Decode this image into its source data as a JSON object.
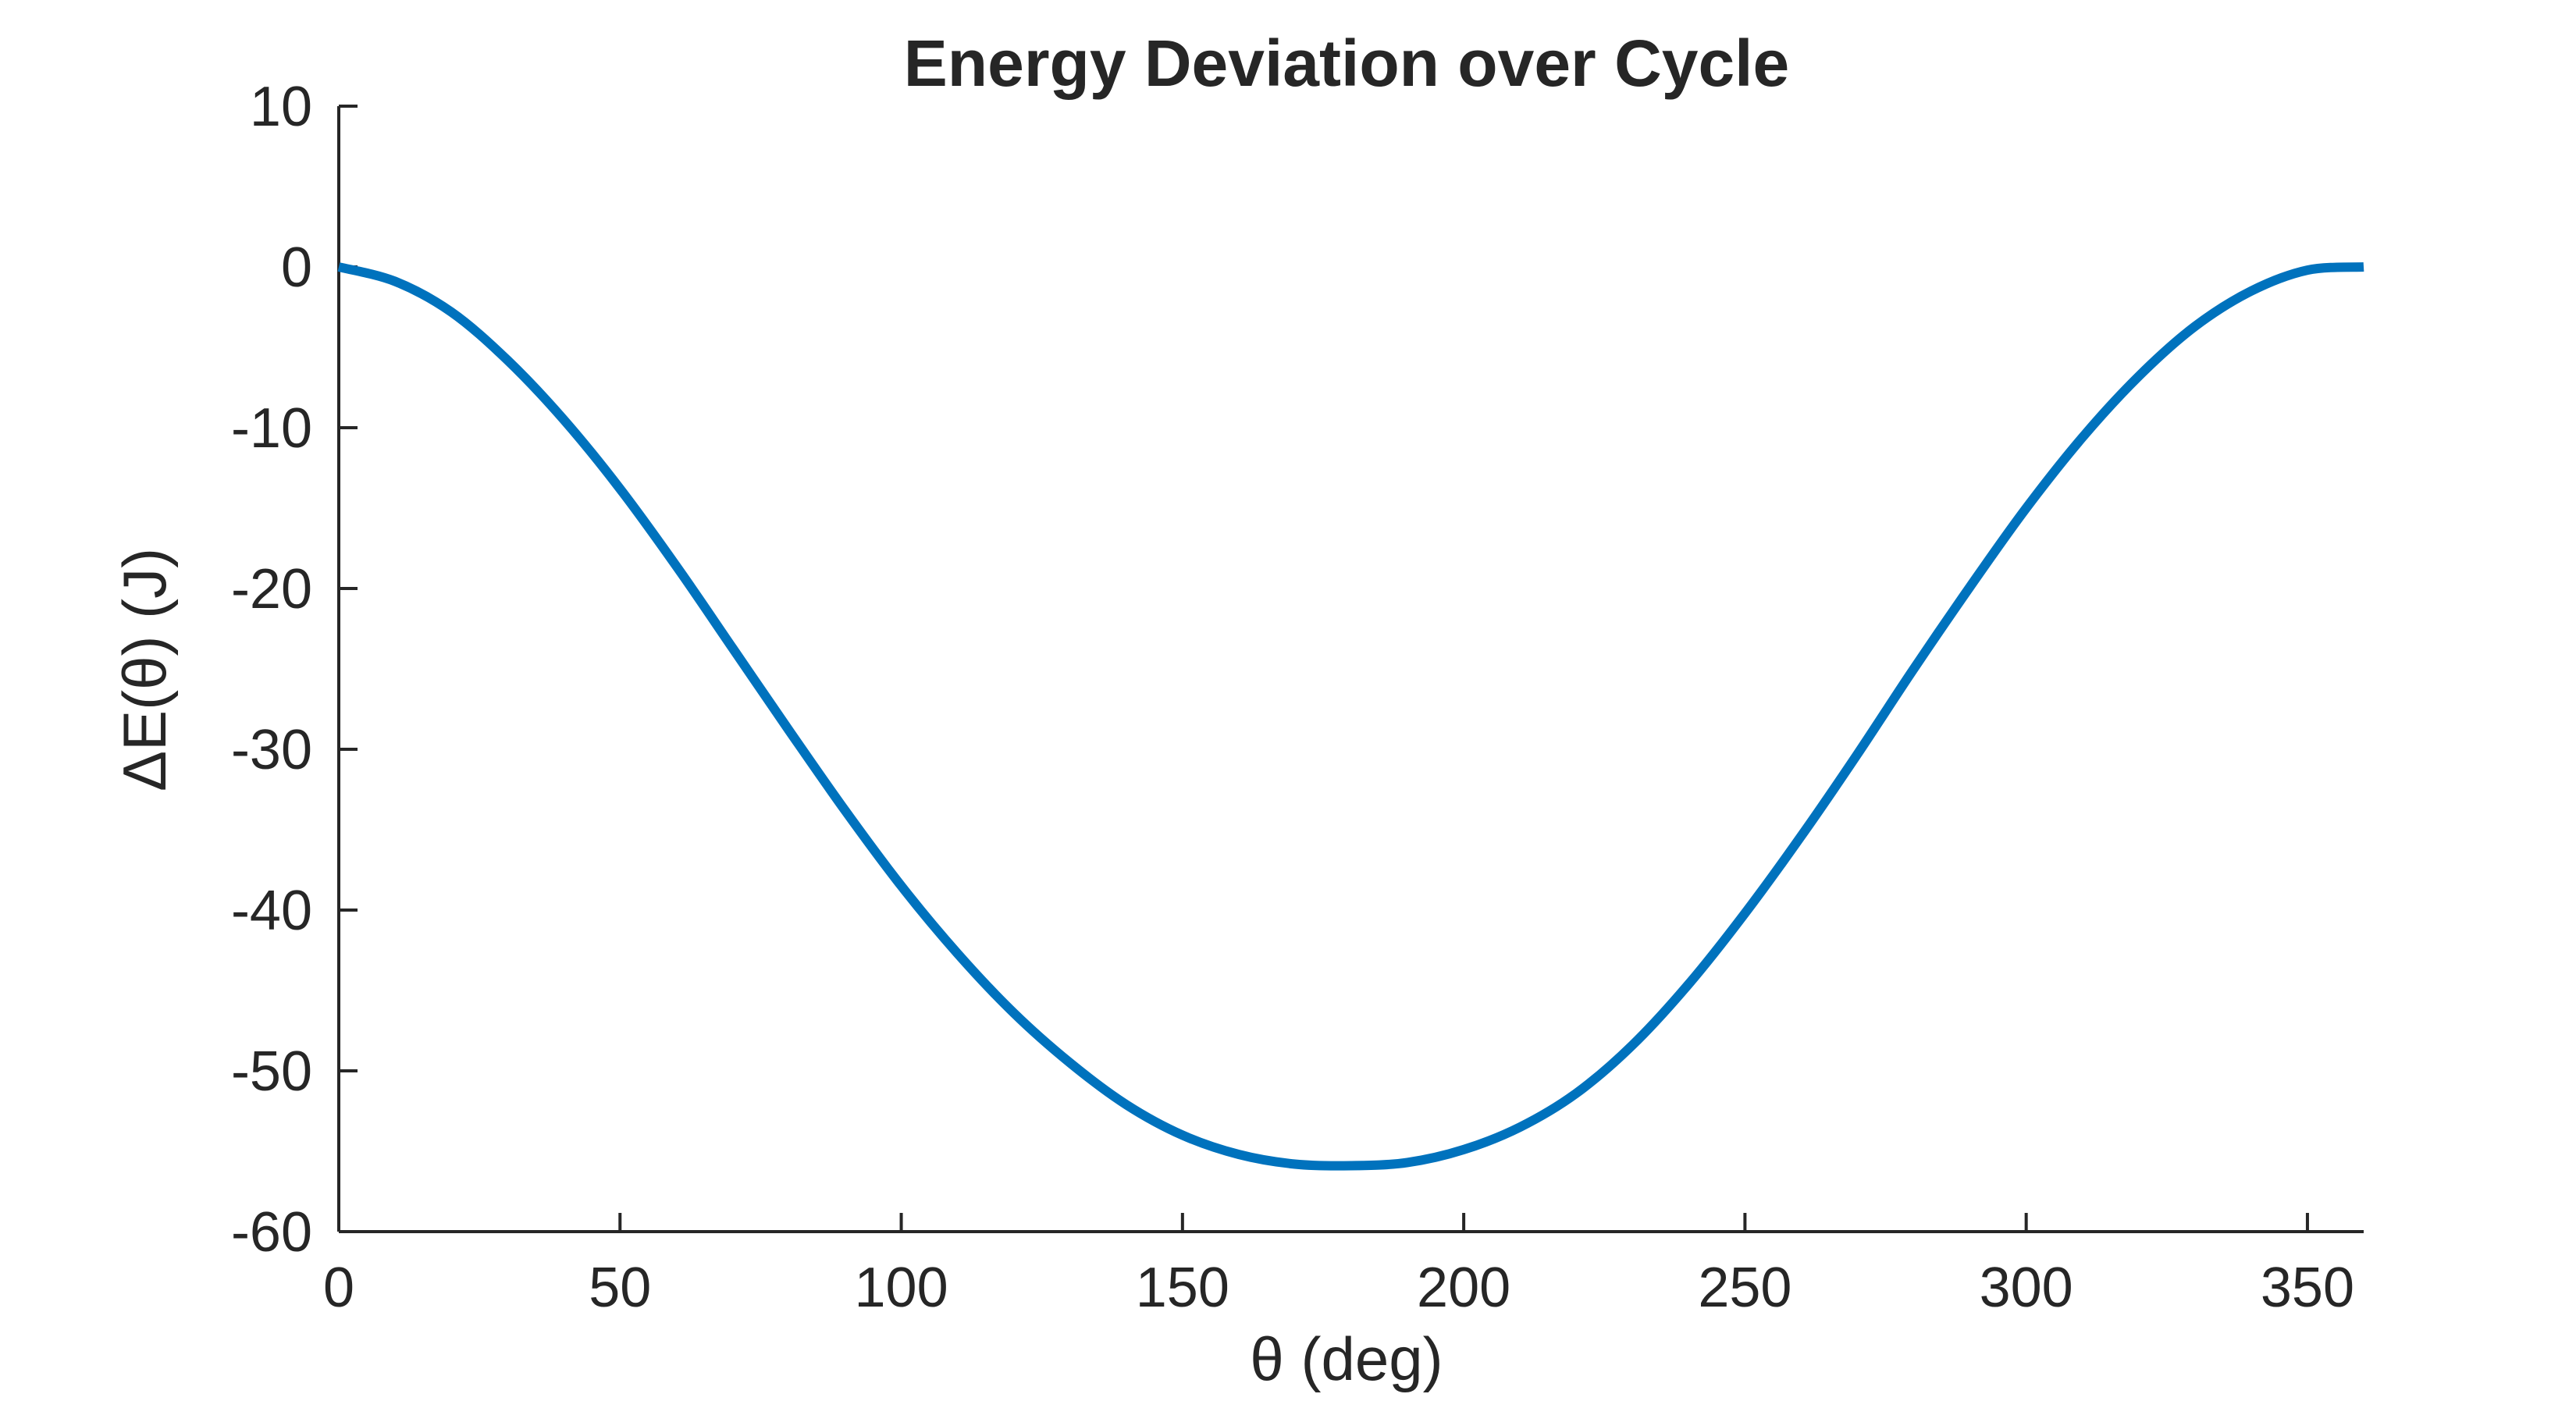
{
  "chart_data": {
    "type": "line",
    "title": "Energy Deviation over Cycle",
    "xlabel": "θ  (deg)",
    "ylabel": "ΔE(θ)  (J)",
    "xlim": [
      0,
      360
    ],
    "ylim": [
      -60,
      10
    ],
    "x_ticks": [
      0,
      50,
      100,
      150,
      200,
      250,
      300,
      350
    ],
    "y_ticks": [
      10,
      0,
      -10,
      -20,
      -30,
      -40,
      -50,
      -60
    ],
    "x_tick_labels": [
      "0",
      "50",
      "100",
      "150",
      "200",
      "250",
      "300",
      "350"
    ],
    "y_tick_labels": [
      "10",
      "0",
      "-10",
      "-20",
      "-30",
      "-40",
      "-50",
      "-60"
    ],
    "grid": false,
    "box": "left-bottom",
    "series": [
      {
        "color": "#0072BD",
        "x": [
          0,
          10,
          20,
          30,
          40,
          50,
          60,
          70,
          80,
          90,
          100,
          110,
          120,
          130,
          140,
          150,
          160,
          170,
          180,
          190,
          200,
          210,
          220,
          230,
          240,
          250,
          260,
          270,
          280,
          290,
          300,
          310,
          320,
          330,
          340,
          350,
          360
        ],
        "y": [
          0,
          -0.9,
          -2.8,
          -5.8,
          -9.5,
          -13.8,
          -18.6,
          -23.7,
          -28.8,
          -33.8,
          -38.5,
          -42.7,
          -46.4,
          -49.5,
          -52.1,
          -54.0,
          -55.2,
          -55.8,
          -55.9,
          -55.7,
          -54.9,
          -53.5,
          -51.4,
          -48.4,
          -44.6,
          -40.2,
          -35.4,
          -30.3,
          -25.0,
          -19.9,
          -15.0,
          -10.6,
          -6.8,
          -3.7,
          -1.5,
          -0.2,
          0
        ]
      }
    ]
  }
}
